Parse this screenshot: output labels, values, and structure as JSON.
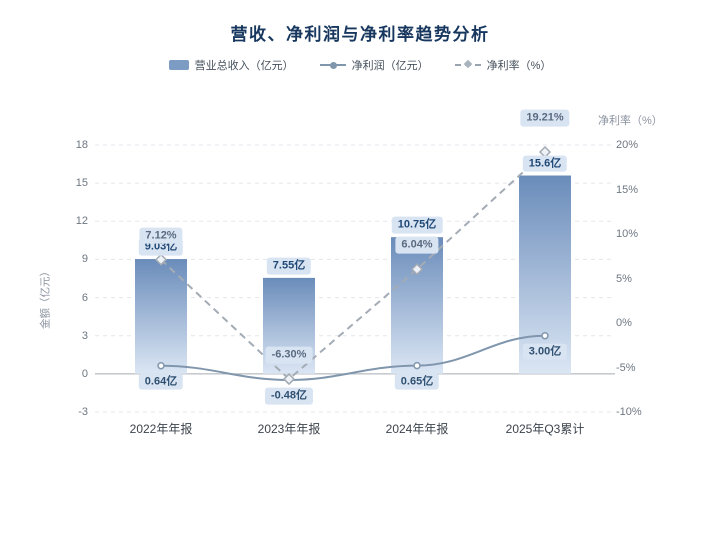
{
  "title": "营收、净利润与净利率趋势分析",
  "legend": [
    {
      "label": "营业总收入（亿元）",
      "type": "bar"
    },
    {
      "label": "净利润（亿元）",
      "type": "line"
    },
    {
      "label": "净利率（%）",
      "type": "dashed-line"
    }
  ],
  "chart_data": {
    "type": "combo",
    "categories": [
      "2022年年报",
      "2023年年报",
      "2024年年报",
      "2025年Q3累计"
    ],
    "series": [
      {
        "name": "营业总收入（亿元）",
        "type": "bar",
        "axis": "left",
        "values": [
          9.03,
          7.55,
          10.75,
          15.6
        ],
        "labels": [
          "9.03亿",
          "7.55亿",
          "10.75亿",
          "15.6亿"
        ]
      },
      {
        "name": "净利润（亿元）",
        "type": "line",
        "axis": "left",
        "values": [
          0.64,
          -0.48,
          0.65,
          3.0
        ],
        "labels": [
          "0.64亿",
          "-0.48亿",
          "0.65亿",
          "3.00亿"
        ]
      },
      {
        "name": "净利率（%）",
        "type": "dashed-line",
        "axis": "right",
        "values": [
          7.12,
          -6.3,
          6.04,
          19.21
        ],
        "labels": [
          "7.12%",
          "-6.30%",
          "6.04%",
          "19.21%"
        ]
      }
    ],
    "left_axis": {
      "title": "金额（亿元）",
      "min": -3,
      "max": 18,
      "ticks": [
        18,
        15,
        12,
        9,
        6,
        3,
        0,
        -3
      ]
    },
    "right_axis": {
      "title": "净利率（%）",
      "min": -10,
      "max": 20,
      "tick_labels": [
        "20%",
        "15%",
        "10%",
        "5%",
        "0%",
        "-5%",
        "-10%"
      ],
      "tick_values": [
        20,
        15,
        10,
        5,
        0,
        -5,
        -10
      ]
    },
    "grid": true,
    "legend_position": "top"
  },
  "colors": {
    "title": "#17375e",
    "bar_top": "#6a8cba",
    "bar_bottom": "#dbe6f4",
    "profit_line": "#8096ad",
    "margin_line": "#a3abb5",
    "label_bg": "#d9e4f3",
    "grid": "#e3e7ec",
    "zero_line": "#a8adb5"
  }
}
